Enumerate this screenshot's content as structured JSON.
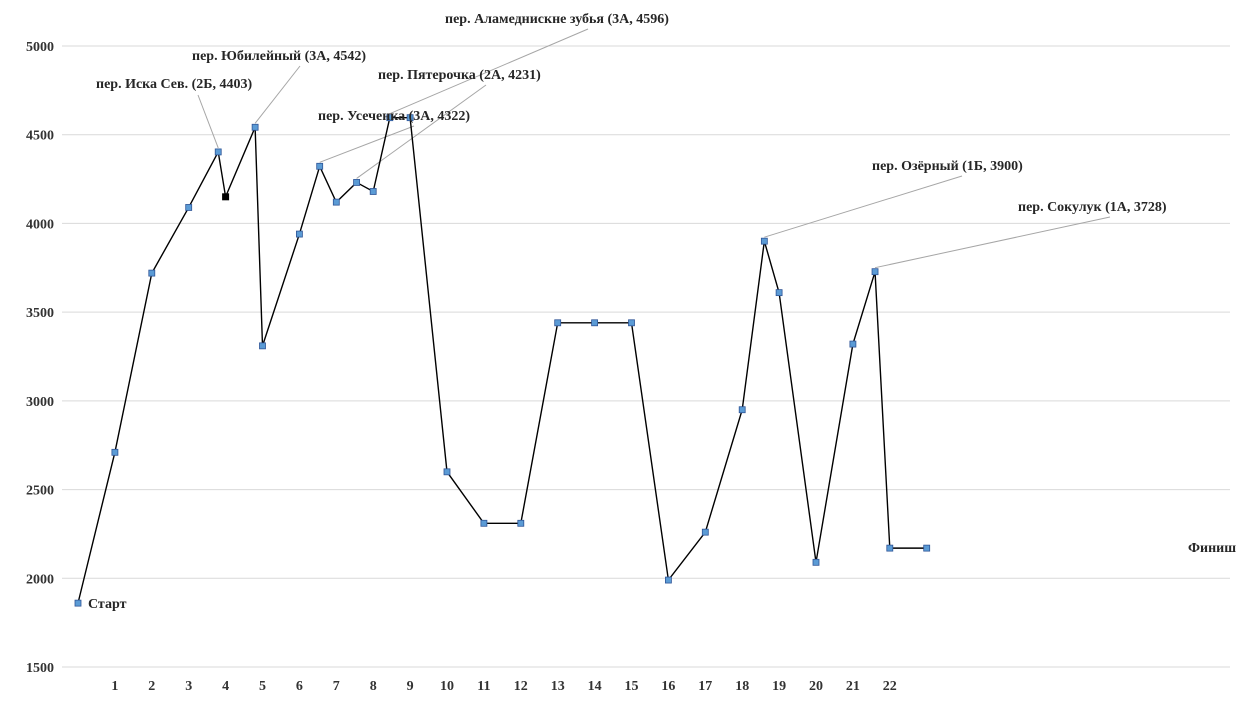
{
  "chart_data": {
    "type": "line",
    "title": "",
    "xlabel": "",
    "ylabel": "",
    "ylim": [
      1500,
      5000
    ],
    "yticks": [
      1500,
      2000,
      2500,
      3000,
      3500,
      4000,
      4500,
      5000
    ],
    "grid": true,
    "line_color": "#000000",
    "marker_fill": "#5b9bd5",
    "marker_edge": "#2f5597",
    "highlight_marker_fill": "#000000",
    "points": [
      {
        "x": 0,
        "y": 1860
      },
      {
        "x": 1,
        "y": 2710
      },
      {
        "x": 2,
        "y": 3720
      },
      {
        "x": 3,
        "y": 4090
      },
      {
        "x": 3.8,
        "y": 4403
      },
      {
        "x": 4,
        "y": 4150,
        "highlight": true
      },
      {
        "x": 4.8,
        "y": 4542
      },
      {
        "x": 5,
        "y": 3310
      },
      {
        "x": 6,
        "y": 3940
      },
      {
        "x": 6.55,
        "y": 4322
      },
      {
        "x": 7,
        "y": 4120
      },
      {
        "x": 7.55,
        "y": 4231
      },
      {
        "x": 8,
        "y": 4180
      },
      {
        "x": 8.45,
        "y": 4596
      },
      {
        "x": 9,
        "y": 4596
      },
      {
        "x": 10,
        "y": 2600
      },
      {
        "x": 11,
        "y": 2310
      },
      {
        "x": 12,
        "y": 2310
      },
      {
        "x": 13,
        "y": 3440
      },
      {
        "x": 14,
        "y": 3440
      },
      {
        "x": 15,
        "y": 3440
      },
      {
        "x": 16,
        "y": 1990
      },
      {
        "x": 17,
        "y": 2260
      },
      {
        "x": 18,
        "y": 2950
      },
      {
        "x": 18.6,
        "y": 3900
      },
      {
        "x": 19,
        "y": 3610
      },
      {
        "x": 20,
        "y": 2090
      },
      {
        "x": 21,
        "y": 3320
      },
      {
        "x": 21.6,
        "y": 3728
      },
      {
        "x": 22,
        "y": 2170
      },
      {
        "x": 23,
        "y": 2170
      }
    ],
    "xticks": [
      {
        "x": 1,
        "label": "1"
      },
      {
        "x": 2,
        "label": "2"
      },
      {
        "x": 3,
        "label": "3"
      },
      {
        "x": 4,
        "label": "4"
      },
      {
        "x": 5,
        "label": "5"
      },
      {
        "x": 6,
        "label": "6"
      },
      {
        "x": 7,
        "label": "7"
      },
      {
        "x": 8,
        "label": "8"
      },
      {
        "x": 9,
        "label": "9"
      },
      {
        "x": 10,
        "label": "10"
      },
      {
        "x": 11,
        "label": "11"
      },
      {
        "x": 12,
        "label": "12"
      },
      {
        "x": 13,
        "label": "13"
      },
      {
        "x": 14,
        "label": "14"
      },
      {
        "x": 15,
        "label": "15"
      },
      {
        "x": 16,
        "label": "16"
      },
      {
        "x": 17,
        "label": "17"
      },
      {
        "x": 18,
        "label": "18"
      },
      {
        "x": 19,
        "label": "19"
      },
      {
        "x": 20,
        "label": "20"
      },
      {
        "x": 21,
        "label": "21"
      },
      {
        "x": 22,
        "label": "22"
      }
    ],
    "annotations": [
      {
        "point": 0,
        "text": "Старт"
      },
      {
        "point": 4,
        "text": "пер. Иска Сев. (2Б, 4403)"
      },
      {
        "point": 6,
        "text": "пер. Юбилейный (3А, 4542)"
      },
      {
        "point": 9,
        "text": "пер. Усеченка (3А, 4322)"
      },
      {
        "point": 11,
        "text": "пер. Пятерочка (2А, 4231)"
      },
      {
        "point": 13,
        "text": "пер. Аламеднискне зубья (3А, 4596)"
      },
      {
        "point": 24,
        "text": "пер. Озёрный (1Б, 3900)"
      },
      {
        "point": 28,
        "text": "пер. Сокулук (1А, 3728)"
      },
      {
        "point": 30,
        "text": "Финиш"
      }
    ]
  }
}
